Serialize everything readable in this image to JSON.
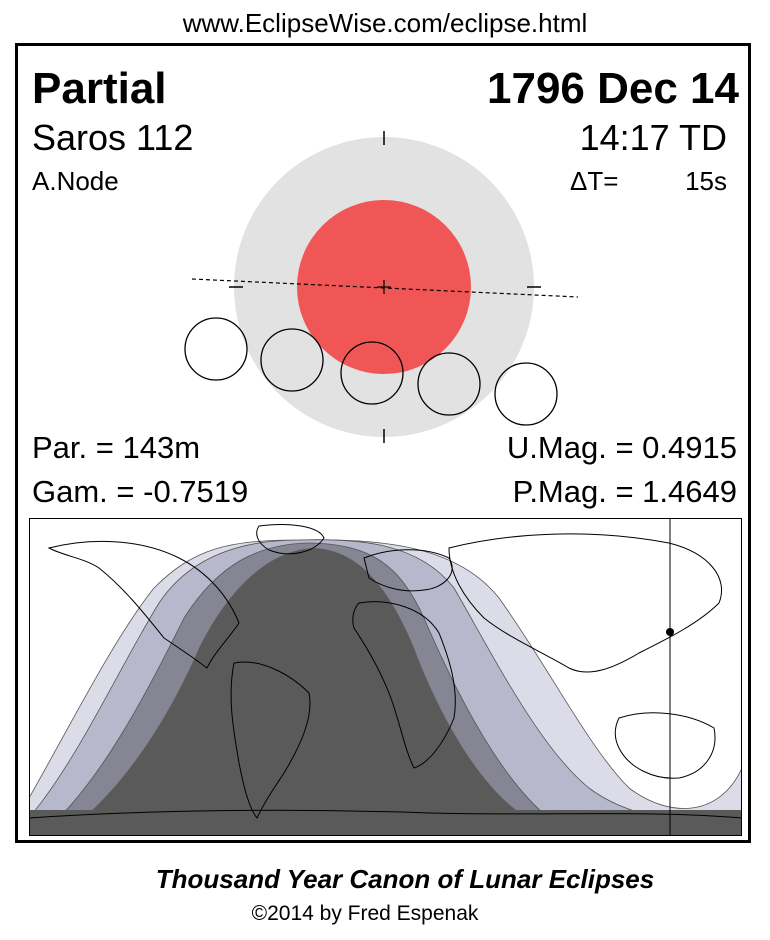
{
  "header": {
    "url": "www.EclipseWise.com/eclipse.html"
  },
  "eclipse": {
    "type": "Partial",
    "date": "1796 Dec 14",
    "saros": "Saros 112",
    "time": "14:17 TD",
    "node": "A.Node",
    "delta_t_label": "ΔT=",
    "delta_t_value": "15s",
    "partial_duration": "Par. = 143m",
    "gamma": "Gam. = -0.7519",
    "umbral_magnitude": "U.Mag. = 0.4915",
    "penumbral_magnitude": "P.Mag. = 1.4649"
  },
  "colors": {
    "penumbra": "#e2e2e2",
    "umbra": "#f05656",
    "map_total_zone": "#5a5a5a",
    "map_band_dark": "#858593",
    "map_band_mid": "#b8b8cc",
    "map_band_light": "#dcdce8"
  },
  "footer": {
    "canon": "Thousand Year Canon of Lunar Eclipses",
    "copyright": "©2014 by Fred Espenak"
  }
}
